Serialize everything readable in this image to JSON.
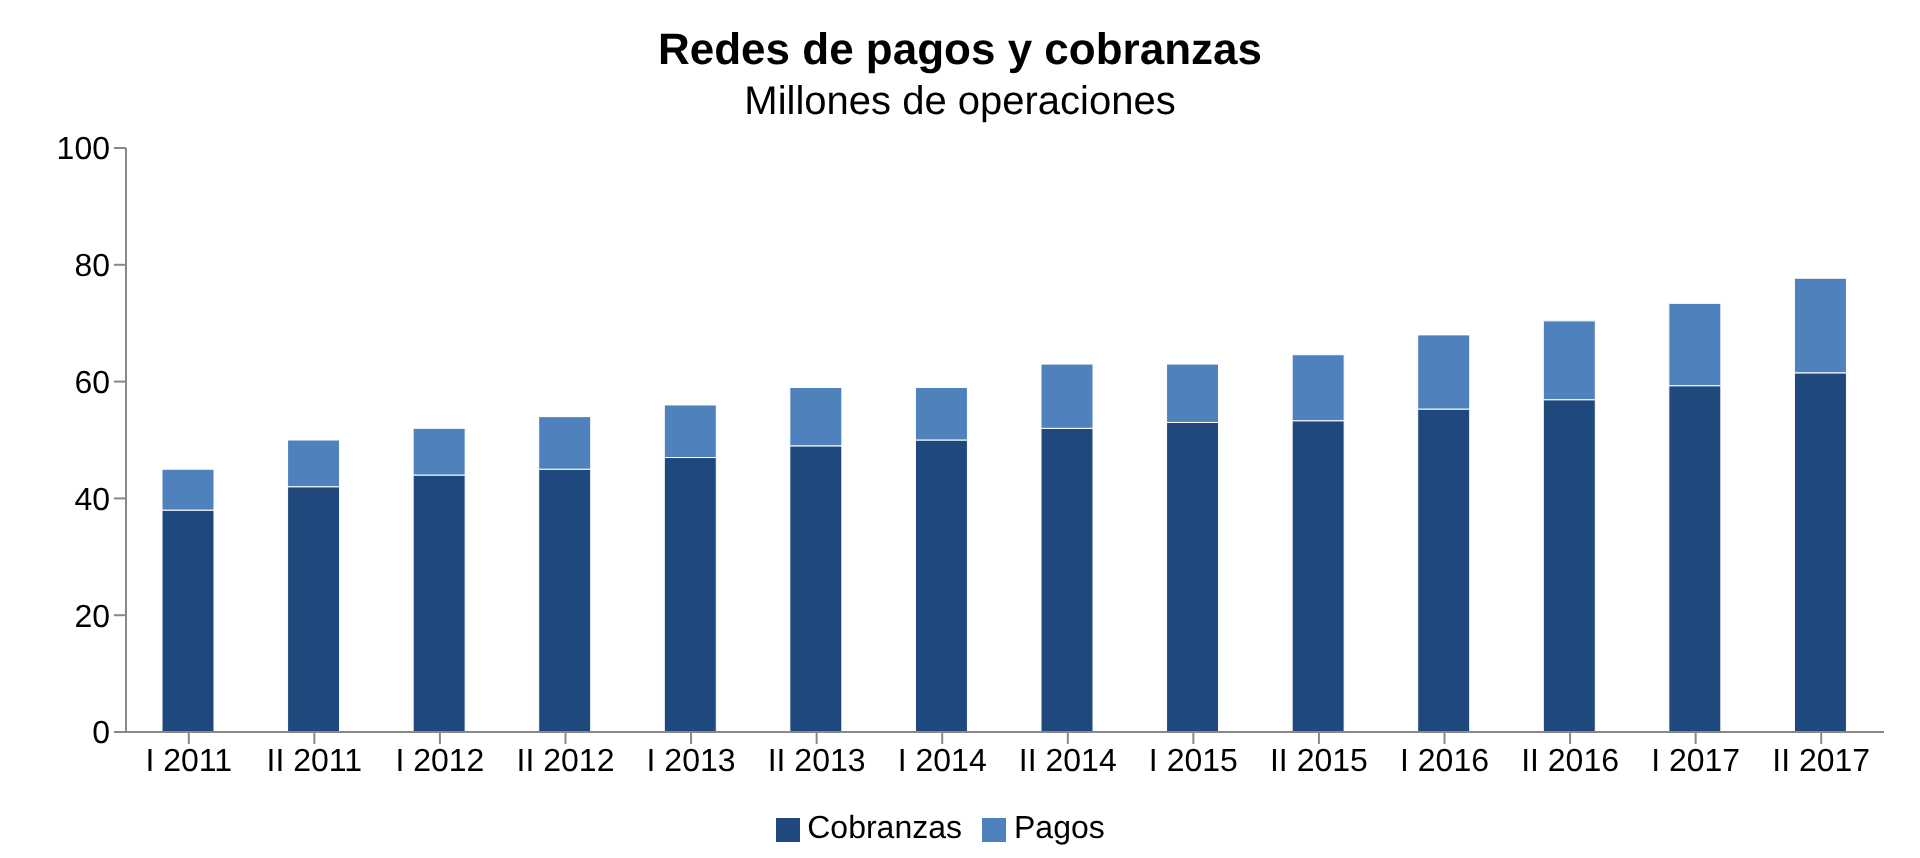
{
  "chart_data": {
    "type": "bar",
    "title": "Redes de pagos y cobranzas",
    "subtitle": "Millones de operaciones",
    "categories": [
      "I 2011",
      "II 2011",
      "I 2012",
      "II 2012",
      "I 2013",
      "II 2013",
      "I 2014",
      "II 2014",
      "I 2015",
      "II 2015",
      "I 2016",
      "II 2016",
      "I 2017",
      "II 2017"
    ],
    "series": [
      {
        "name": "Cobranzas",
        "color": "#1f497d",
        "values": [
          38,
          42,
          44,
          45,
          47,
          49,
          50,
          52,
          53,
          53.3,
          55.3,
          56.9,
          59.3,
          61.5
        ]
      },
      {
        "name": "Pagos",
        "color": "#4f81bd",
        "values": [
          7,
          8,
          8,
          9,
          9,
          10,
          9,
          11,
          10,
          11.3,
          12.7,
          13.5,
          14.1,
          16.2
        ]
      }
    ],
    "stacked": true,
    "ylim": [
      0,
      100
    ],
    "yticks": [
      0,
      20,
      40,
      60,
      80,
      100
    ],
    "grid": false,
    "legend": "bottom"
  }
}
